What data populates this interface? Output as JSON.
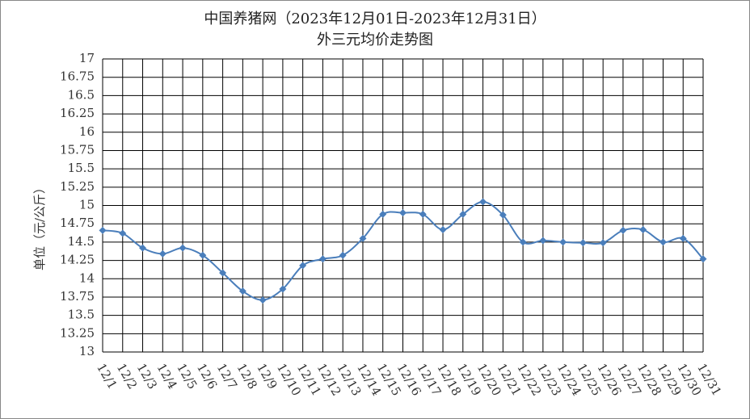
{
  "chart_data": {
    "type": "line",
    "title": "中国养猪网（2023年12月01日-2023年12月31日）",
    "subtitle": "外三元均价走势图",
    "y_label": "单位（元/公斤）",
    "categories": [
      "12/1",
      "12/2",
      "12/3",
      "12/4",
      "12/5",
      "12/6",
      "12/7",
      "12/8",
      "12/9",
      "12/10",
      "12/11",
      "12/12",
      "12/13",
      "12/14",
      "12/15",
      "12/16",
      "12/17",
      "12/18",
      "12/19",
      "12/20",
      "12/21",
      "12/22",
      "12/23",
      "12/24",
      "12/25",
      "12/26",
      "12/27",
      "12/28",
      "12/29",
      "12/30",
      "12/31"
    ],
    "series": [
      {
        "name": "外三元",
        "color": "#4a7ebb",
        "values": [
          14.66,
          14.62,
          14.42,
          14.34,
          14.42,
          14.32,
          14.08,
          13.83,
          13.71,
          13.86,
          14.18,
          14.27,
          14.32,
          14.55,
          14.88,
          14.9,
          14.88,
          14.67,
          14.88,
          15.05,
          14.87,
          14.5,
          14.52,
          14.5,
          14.49,
          14.49,
          14.66,
          14.67,
          14.5,
          14.55,
          14.27
        ]
      }
    ],
    "ylim": [
      13,
      17
    ],
    "yticks": [
      13,
      13.25,
      13.5,
      13.75,
      14,
      14.25,
      14.5,
      14.75,
      15,
      15.25,
      15.5,
      15.75,
      16,
      16.25,
      16.5,
      16.75,
      17
    ],
    "grid": true
  }
}
